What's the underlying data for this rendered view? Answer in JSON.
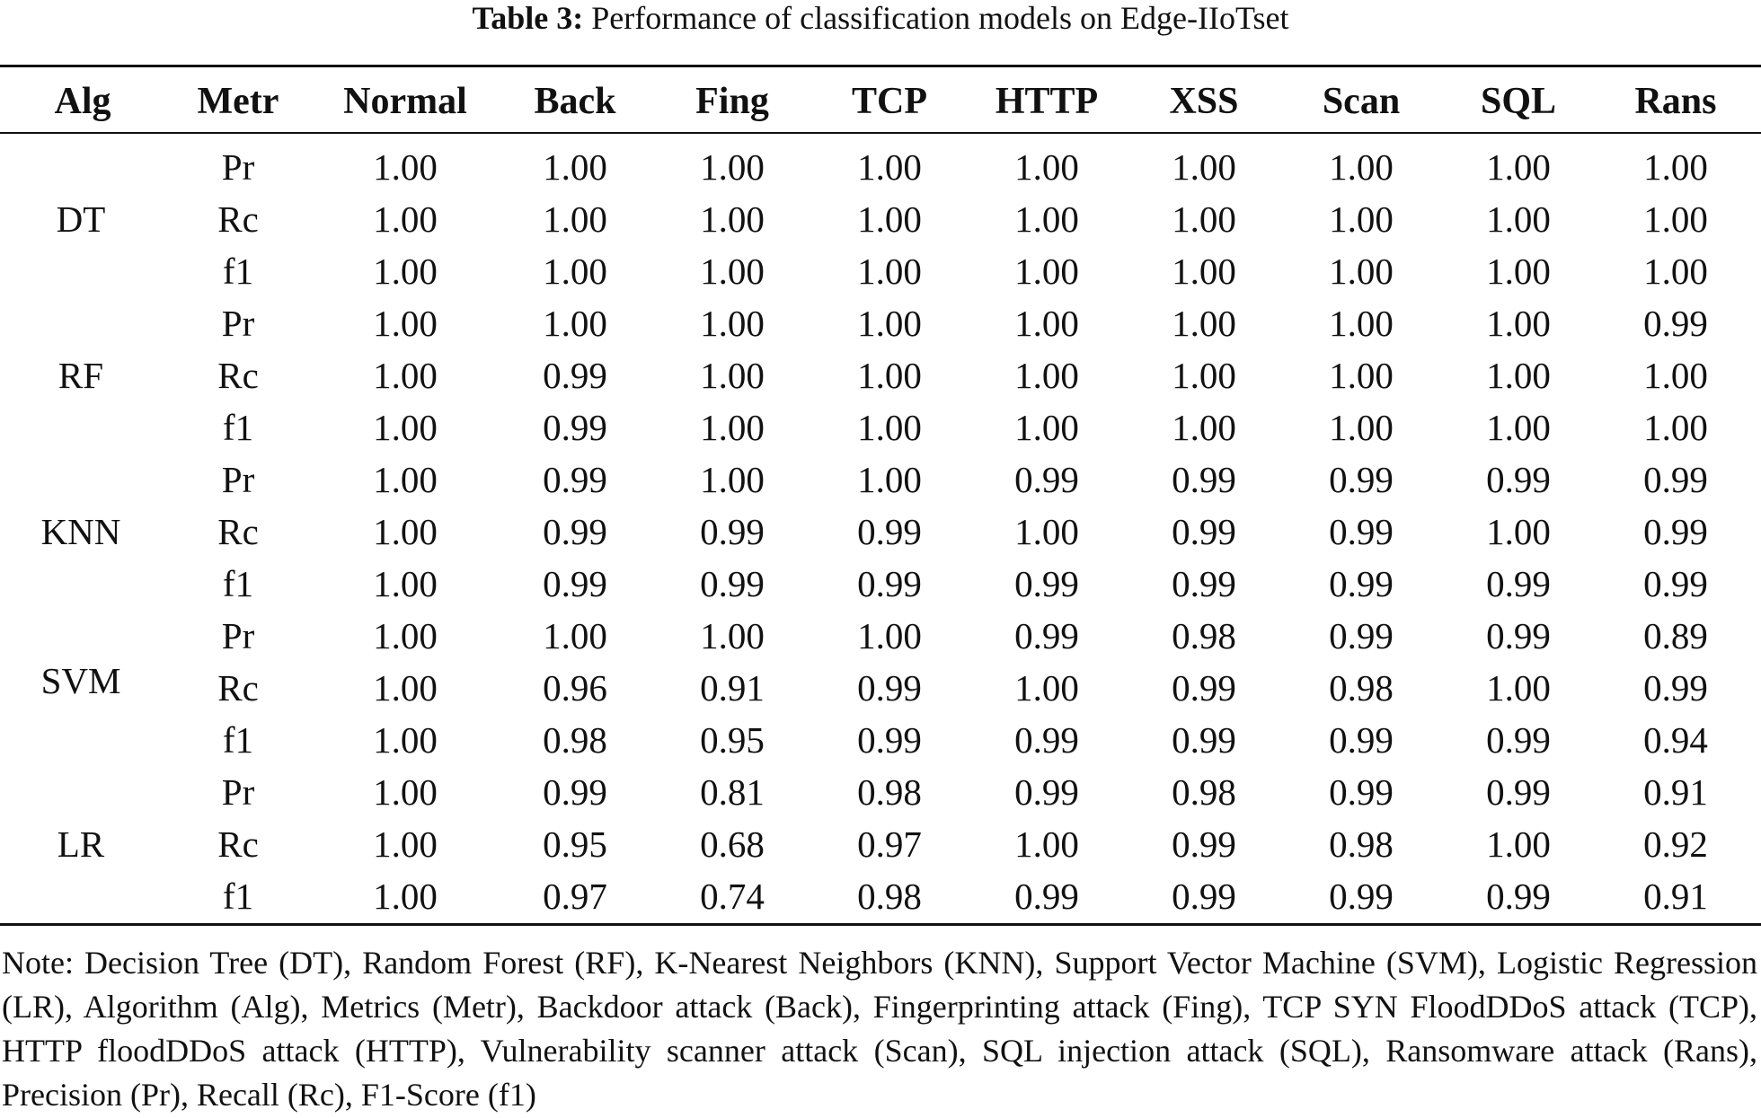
{
  "caption": {
    "label": "Table 3:",
    "text": "Performance of classification models on Edge-IIoTset"
  },
  "table": {
    "columns": [
      "Alg",
      "Metr",
      "Normal",
      "Back",
      "Fing",
      "TCP",
      "HTTP",
      "XSS",
      "Scan",
      "SQL",
      "Rans"
    ],
    "groups": [
      {
        "alg": "DT",
        "rows": [
          {
            "metric": "Pr",
            "values": [
              "1.00",
              "1.00",
              "1.00",
              "1.00",
              "1.00",
              "1.00",
              "1.00",
              "1.00",
              "1.00"
            ]
          },
          {
            "metric": "Rc",
            "values": [
              "1.00",
              "1.00",
              "1.00",
              "1.00",
              "1.00",
              "1.00",
              "1.00",
              "1.00",
              "1.00"
            ]
          },
          {
            "metric": "f1",
            "values": [
              "1.00",
              "1.00",
              "1.00",
              "1.00",
              "1.00",
              "1.00",
              "1.00",
              "1.00",
              "1.00"
            ]
          }
        ]
      },
      {
        "alg": "RF",
        "rows": [
          {
            "metric": "Pr",
            "values": [
              "1.00",
              "1.00",
              "1.00",
              "1.00",
              "1.00",
              "1.00",
              "1.00",
              "1.00",
              "0.99"
            ]
          },
          {
            "metric": "Rc",
            "values": [
              "1.00",
              "0.99",
              "1.00",
              "1.00",
              "1.00",
              "1.00",
              "1.00",
              "1.00",
              "1.00"
            ]
          },
          {
            "metric": "f1",
            "values": [
              "1.00",
              "0.99",
              "1.00",
              "1.00",
              "1.00",
              "1.00",
              "1.00",
              "1.00",
              "1.00"
            ]
          }
        ]
      },
      {
        "alg": "KNN",
        "rows": [
          {
            "metric": "Pr",
            "values": [
              "1.00",
              "0.99",
              "1.00",
              "1.00",
              "0.99",
              "0.99",
              "0.99",
              "0.99",
              "0.99"
            ]
          },
          {
            "metric": "Rc",
            "values": [
              "1.00",
              "0.99",
              "0.99",
              "0.99",
              "1.00",
              "0.99",
              "0.99",
              "1.00",
              "0.99"
            ]
          },
          {
            "metric": "f1",
            "values": [
              "1.00",
              "0.99",
              "0.99",
              "0.99",
              "0.99",
              "0.99",
              "0.99",
              "0.99",
              "0.99"
            ]
          }
        ]
      },
      {
        "alg": "SVM",
        "rows": [
          {
            "metric": "Pr",
            "values": [
              "1.00",
              "1.00",
              "1.00",
              "1.00",
              "0.99",
              "0.98",
              "0.99",
              "0.99",
              "0.89"
            ]
          },
          {
            "metric": "Rc",
            "values": [
              "1.00",
              "0.96",
              "0.91",
              "0.99",
              "1.00",
              "0.99",
              "0.98",
              "1.00",
              "0.99"
            ]
          },
          {
            "metric": "f1",
            "values": [
              "1.00",
              "0.98",
              "0.95",
              "0.99",
              "0.99",
              "0.99",
              "0.99",
              "0.99",
              "0.94"
            ]
          }
        ]
      },
      {
        "alg": "LR",
        "rows": [
          {
            "metric": "Pr",
            "values": [
              "1.00",
              "0.99",
              "0.81",
              "0.98",
              "0.99",
              "0.98",
              "0.99",
              "0.99",
              "0.91"
            ]
          },
          {
            "metric": "Rc",
            "values": [
              "1.00",
              "0.95",
              "0.68",
              "0.97",
              "1.00",
              "0.99",
              "0.98",
              "1.00",
              "0.92"
            ]
          },
          {
            "metric": "f1",
            "values": [
              "1.00",
              "0.97",
              "0.74",
              "0.98",
              "0.99",
              "0.99",
              "0.99",
              "0.99",
              "0.91"
            ]
          }
        ]
      }
    ]
  },
  "note": "Note: Decision Tree (DT), Random Forest (RF), K-Nearest Neighbors (KNN), Support Vector Machine (SVM), Logistic Regression (LR), Algorithm (Alg), Metrics (Metr), Backdoor attack (Back), Fingerprinting attack (Fing), TCP SYN FloodDDoS attack (TCP), HTTP floodDDoS attack (HTTP), Vulnerability scanner attack (Scan), SQL injection attack (SQL), Ransomware attack (Rans), Precision (Pr), Recall (Rc), F1-Score (f1)"
}
